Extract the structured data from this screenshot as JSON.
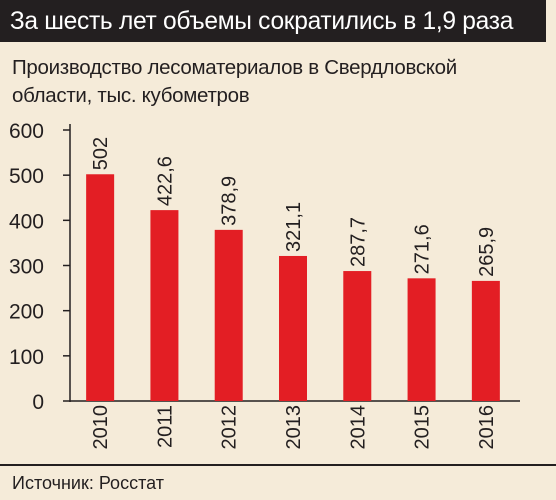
{
  "header": {
    "title": "За шесть лет объемы сократились в 1,9 раза"
  },
  "chart_data": {
    "type": "bar",
    "title": "За шесть лет объемы сократились в 1,9 раза",
    "subtitle": "Производство лесоматериалов в Свердловской области, тыс. кубометров",
    "xlabel": "",
    "ylabel": "",
    "categories": [
      "2010",
      "2011",
      "2012",
      "2013",
      "2014",
      "2015",
      "2016"
    ],
    "values": [
      502,
      422.6,
      378.9,
      321.1,
      287.7,
      271.6,
      265.9
    ],
    "value_labels": [
      "502",
      "422,6",
      "378,9",
      "321,1",
      "287,7",
      "271,6",
      "265,9"
    ],
    "ylim": [
      0,
      600
    ],
    "yticks": [
      "0",
      "100",
      "200",
      "300",
      "400",
      "500",
      "600"
    ],
    "grid": false,
    "legend": "none",
    "bar_color": "#e31e24"
  },
  "footer": {
    "source": "Источник: Росстат"
  }
}
